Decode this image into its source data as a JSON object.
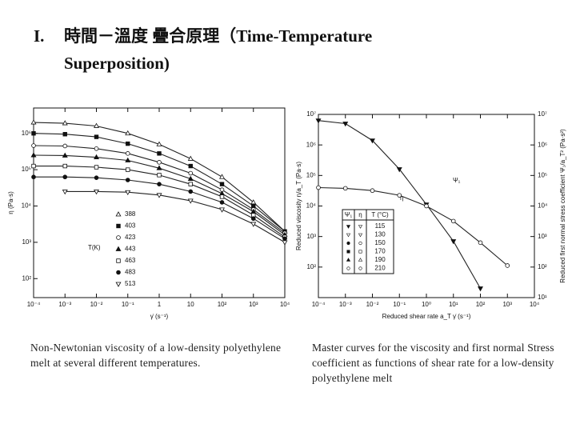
{
  "title": {
    "number": "I.",
    "text": "時間－溫度 疊合原理（Time-Temperature Superposition)"
  },
  "chart_data": [
    {
      "type": "line",
      "xscale": "log",
      "yscale": "log",
      "x_label": "γ̇ (s⁻¹)",
      "y_label": "η (Pa·s)",
      "legend_title": "T(K)",
      "xlim": [
        0.0001,
        10000
      ],
      "xticks": [
        {
          "value": 0.0001,
          "label": "10⁻⁴"
        },
        {
          "value": 0.001,
          "label": "10⁻³"
        },
        {
          "value": 0.01,
          "label": "10⁻²"
        },
        {
          "value": 0.1,
          "label": "10⁻¹"
        },
        1,
        10,
        {
          "value": 100,
          "label": "10²"
        },
        {
          "value": 1000,
          "label": "10³"
        },
        {
          "value": 10000,
          "label": "10⁴"
        }
      ],
      "ylim": [
        30,
        5000000
      ],
      "yticks": [
        {
          "value": 100,
          "label": "10²"
        },
        {
          "value": 1000,
          "label": "10³"
        },
        {
          "value": 10000,
          "label": "10⁴"
        },
        {
          "value": 100000,
          "label": "10⁵"
        },
        {
          "value": 1000000,
          "label": "10⁶"
        }
      ],
      "x": [
        0.0001,
        0.001,
        0.01,
        0.1,
        1,
        10,
        100,
        1000,
        10000
      ],
      "series": [
        {
          "name": "388",
          "color": "#222222",
          "marker": "triangle-up-open",
          "values": [
            2000000,
            1900000,
            1600000,
            1000000,
            500000,
            200000,
            63000,
            12600,
            2000
          ]
        },
        {
          "name": "403",
          "color": "#222222",
          "marker": "square-filled",
          "values": [
            1000000,
            950000,
            800000,
            520000,
            280000,
            126000,
            40000,
            10000,
            2000
          ]
        },
        {
          "name": "423",
          "color": "#222222",
          "marker": "circle-open",
          "values": [
            460000,
            450000,
            380000,
            280000,
            160000,
            80000,
            28000,
            8000,
            1800
          ]
        },
        {
          "name": "443",
          "color": "#222222",
          "marker": "triangle-up-filled",
          "values": [
            250000,
            245000,
            220000,
            180000,
            110000,
            56000,
            22000,
            7000,
            1600
          ]
        },
        {
          "name": "463",
          "color": "#222222",
          "marker": "square-open",
          "values": [
            126000,
            126000,
            117000,
            100000,
            71000,
            40000,
            18000,
            5600,
            1400
          ]
        },
        {
          "name": "483",
          "color": "#222222",
          "marker": "circle-filled",
          "values": [
            63000,
            63000,
            60000,
            52000,
            40000,
            25000,
            12600,
            4500,
            1260
          ]
        },
        {
          "name": "513",
          "color": "#222222",
          "marker": "triangle-down-open",
          "values": [
            null,
            25000,
            25000,
            24000,
            20000,
            14000,
            8000,
            3200,
            1000
          ]
        }
      ]
    },
    {
      "type": "line",
      "xscale": "log",
      "yscale": "log",
      "x_label": "Reduced shear rate a_T γ̇ (s⁻¹)",
      "y_label": "Reduced viscosity η/a_T (Pa·s)",
      "y2_label": "Reduced first normal stress coefficient Ψ₁/a_T² (Pa·s²)",
      "xlim": [
        0.0001,
        10000
      ],
      "xticks": [
        {
          "value": 0.0001,
          "label": "10⁻⁴"
        },
        {
          "value": 0.001,
          "label": "10⁻³"
        },
        {
          "value": 0.01,
          "label": "10⁻²"
        },
        {
          "value": 0.1,
          "label": "10⁻¹"
        },
        {
          "value": 1,
          "label": "10⁰"
        },
        {
          "value": 10,
          "label": "10¹"
        },
        {
          "value": 100,
          "label": "10²"
        },
        {
          "value": 1000,
          "label": "10³"
        },
        {
          "value": 10000,
          "label": "10⁴"
        }
      ],
      "ylim": [
        10,
        10000000
      ],
      "yticks": [
        {
          "value": 100,
          "label": "10²"
        },
        {
          "value": 1000,
          "label": "10³"
        },
        {
          "value": 10000,
          "label": "10⁴"
        },
        {
          "value": 100000,
          "label": "10⁵"
        },
        {
          "value": 1000000,
          "label": "10⁶"
        },
        {
          "value": 10000000,
          "label": "10⁷"
        }
      ],
      "y2lim": [
        10,
        10000000
      ],
      "y2ticks": [
        {
          "value": 10,
          "label": "10¹"
        },
        {
          "value": 100,
          "label": "10²"
        },
        {
          "value": 1000,
          "label": "10³"
        },
        {
          "value": 10000,
          "label": "10⁴"
        },
        {
          "value": 100000,
          "label": "10⁵"
        },
        {
          "value": 1000000,
          "label": "10⁶"
        },
        {
          "value": 10000000,
          "label": "10⁷"
        }
      ],
      "series": [
        {
          "name": "Ψ₁",
          "color": "#222222",
          "marker": "triangle-down-filled",
          "axis": "y2",
          "x": [
            0.0001,
            0.001,
            0.01,
            0.1,
            1,
            10,
            100
          ],
          "values": [
            6300000,
            5000000,
            1400000,
            160000,
            11200,
            700,
            20
          ]
        },
        {
          "name": "η",
          "color": "#222222",
          "marker": "circle-open",
          "x": [
            0.0001,
            0.001,
            0.01,
            0.1,
            1,
            10,
            100,
            1000
          ],
          "values": [
            40000,
            38000,
            32000,
            22400,
            10000,
            3200,
            630,
            112
          ]
        }
      ],
      "legend_table": {
        "headers": [
          "Ψ₁",
          "η",
          "T (°C)"
        ],
        "temps": [
          115,
          130,
          150,
          170,
          190,
          210
        ]
      }
    }
  ],
  "captions": [
    "Non-Newtonian viscosity of a low-density polyethylene melt at several different temperatures.",
    "Master curves for the viscosity and first normal Stress coefficient as functions of shear rate for a low-density polyethylene melt"
  ]
}
